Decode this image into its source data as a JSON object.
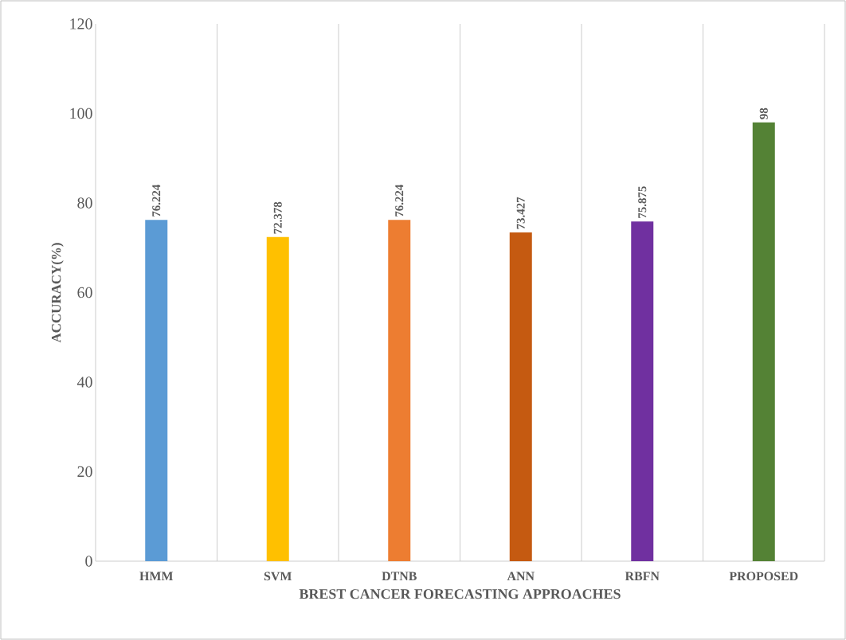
{
  "chart_data": {
    "type": "bar",
    "xlabel": "BREST CANCER FORECASTING APPROACHES",
    "ylabel": "ACCURACY(%)",
    "categories": [
      "HMM",
      "SVM",
      "DTNB",
      "ANN",
      "RBFN",
      "PROPOSED"
    ],
    "values": [
      76.224,
      72.378,
      76.224,
      73.427,
      75.875,
      98
    ],
    "colors": [
      "#5b9bd5",
      "#ffc000",
      "#ed7d31",
      "#c55a11",
      "#7030a0",
      "#548235"
    ],
    "ylim": [
      0,
      120
    ],
    "yticks": [
      0,
      20,
      40,
      60,
      80,
      100,
      120
    ],
    "grid": "x",
    "data_labels": true
  }
}
